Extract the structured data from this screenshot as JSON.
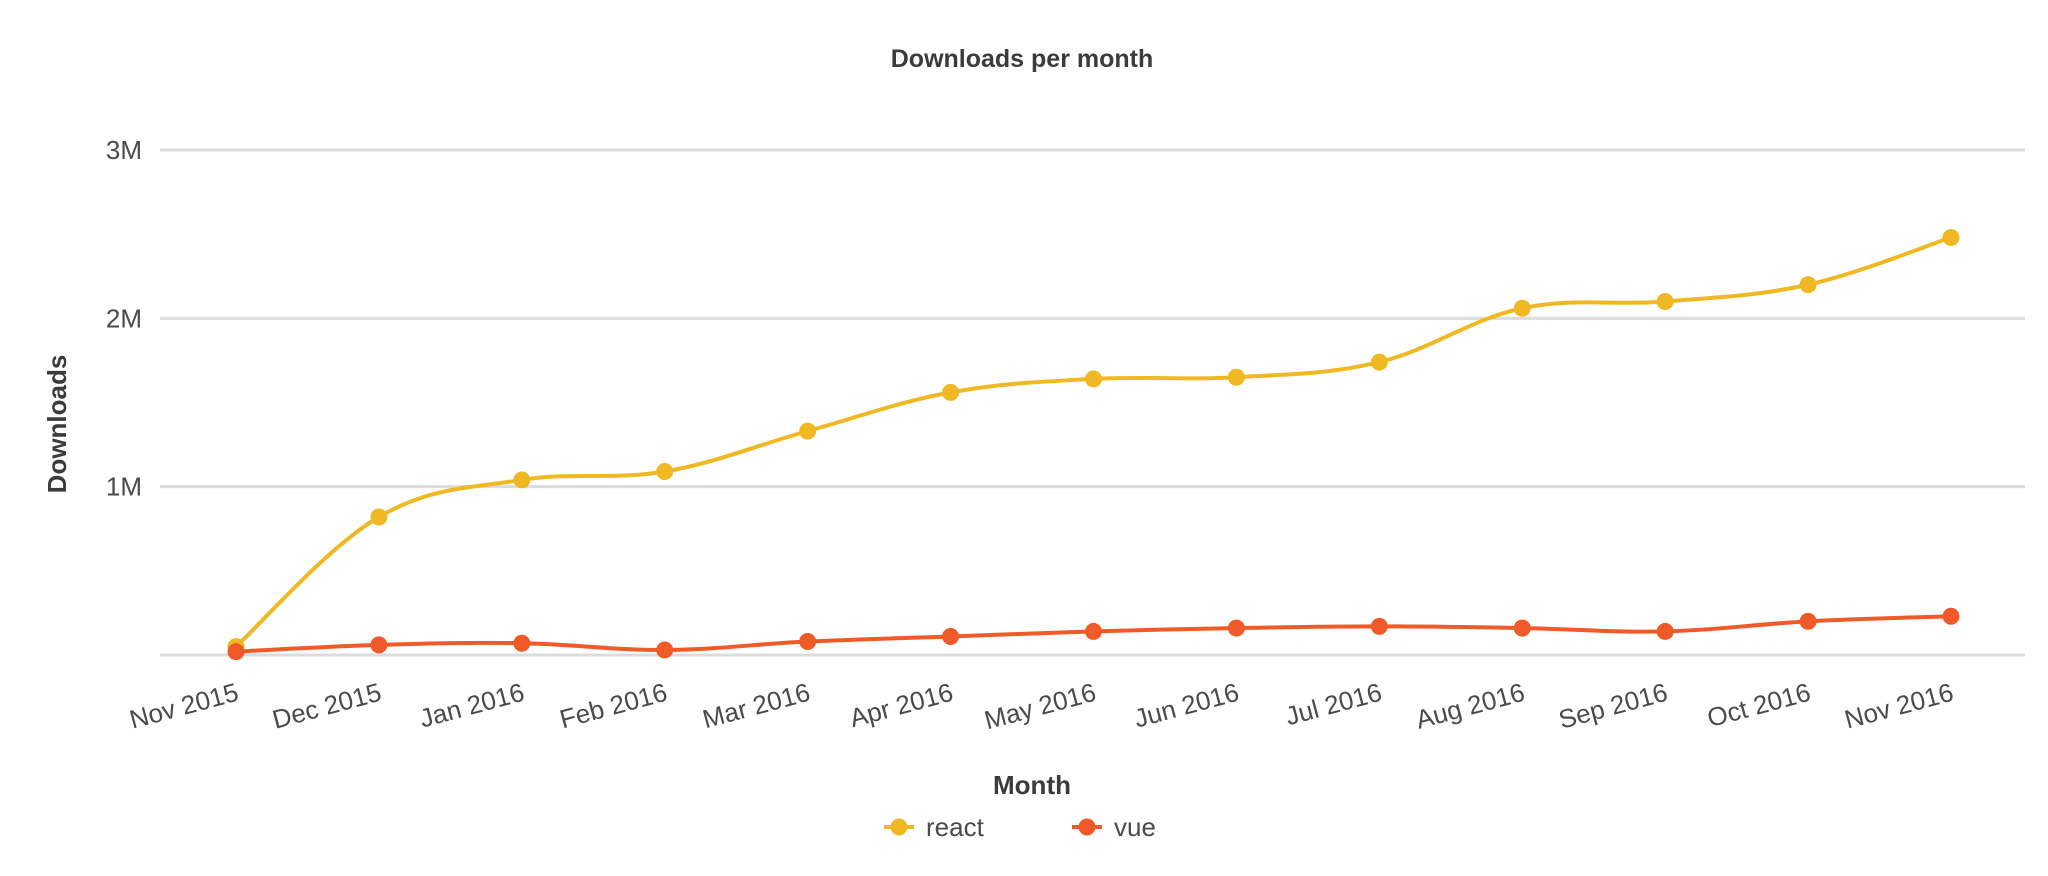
{
  "chart_data": {
    "type": "line",
    "title": "Downloads per month",
    "xlabel": "Month",
    "ylabel": "Downloads",
    "categories": [
      "Nov 2015",
      "Dec 2015",
      "Jan 2016",
      "Feb 2016",
      "Mar 2016",
      "Apr 2016",
      "May 2016",
      "Jun 2016",
      "Jul 2016",
      "Aug 2016",
      "Sep 2016",
      "Oct 2016",
      "Nov 2016"
    ],
    "yticks": [
      {
        "value": 1000000,
        "label": "1M"
      },
      {
        "value": 2000000,
        "label": "2M"
      },
      {
        "value": 3000000,
        "label": "3M"
      }
    ],
    "ylim": [
      0,
      3000000
    ],
    "grid": true,
    "legend_position": "bottom-center",
    "series": [
      {
        "name": "react",
        "color": "#f0b823",
        "values": [
          50000,
          820000,
          1040000,
          1090000,
          1330000,
          1560000,
          1640000,
          1650000,
          1740000,
          2060000,
          2100000,
          2200000,
          2480000
        ]
      },
      {
        "name": "vue",
        "color": "#f05a28",
        "values": [
          20000,
          60000,
          70000,
          30000,
          80000,
          110000,
          140000,
          160000,
          170000,
          160000,
          140000,
          200000,
          230000
        ]
      }
    ]
  }
}
